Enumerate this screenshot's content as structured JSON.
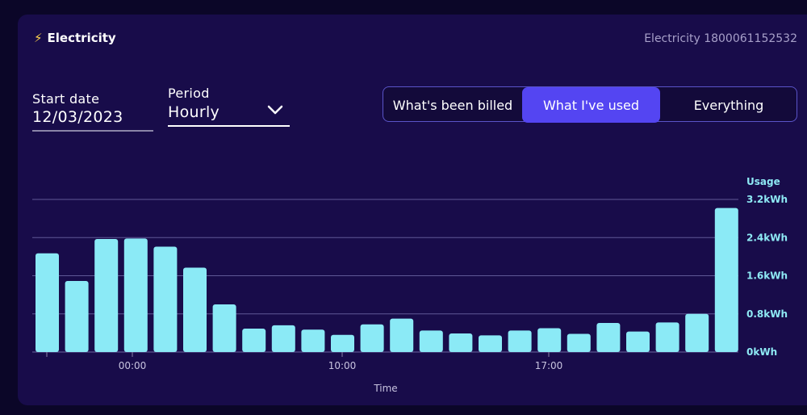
{
  "header": {
    "title": "Electricity",
    "bolt_icon": "lightning-bolt-icon",
    "account_label": "Electricity 1800061152532"
  },
  "filters": {
    "start_date_label": "Start date",
    "start_date_value": "12/03/2023",
    "period_label": "Period",
    "period_value": "Hourly",
    "period_icon": "chevron-down-icon"
  },
  "view_toggle": {
    "options": [
      "What's been billed",
      "What I've used",
      "Everything"
    ],
    "selected": "What I've used"
  },
  "colors": {
    "bar": "#8beaf6",
    "accent": "#5445f2",
    "card": "#180c4a",
    "background": "#0b0628"
  },
  "chart_data": {
    "type": "bar",
    "title": "",
    "xlabel": "Time",
    "ylabel": "Usage",
    "x_ticks": [
      "00:00",
      "10:00",
      "17:00"
    ],
    "y_ticks": [
      "0kWh",
      "0.8kWh",
      "1.6kWh",
      "2.4kWh",
      "3.2kWh"
    ],
    "ylim": [
      0,
      3.2
    ],
    "unit": "kWh",
    "grid": true,
    "values": [
      2.07,
      1.49,
      2.37,
      2.38,
      2.21,
      1.77,
      1.0,
      0.49,
      0.56,
      0.47,
      0.36,
      0.58,
      0.7,
      0.45,
      0.39,
      0.35,
      0.45,
      0.5,
      0.38,
      0.61,
      0.43,
      0.62,
      0.8,
      3.02
    ]
  }
}
